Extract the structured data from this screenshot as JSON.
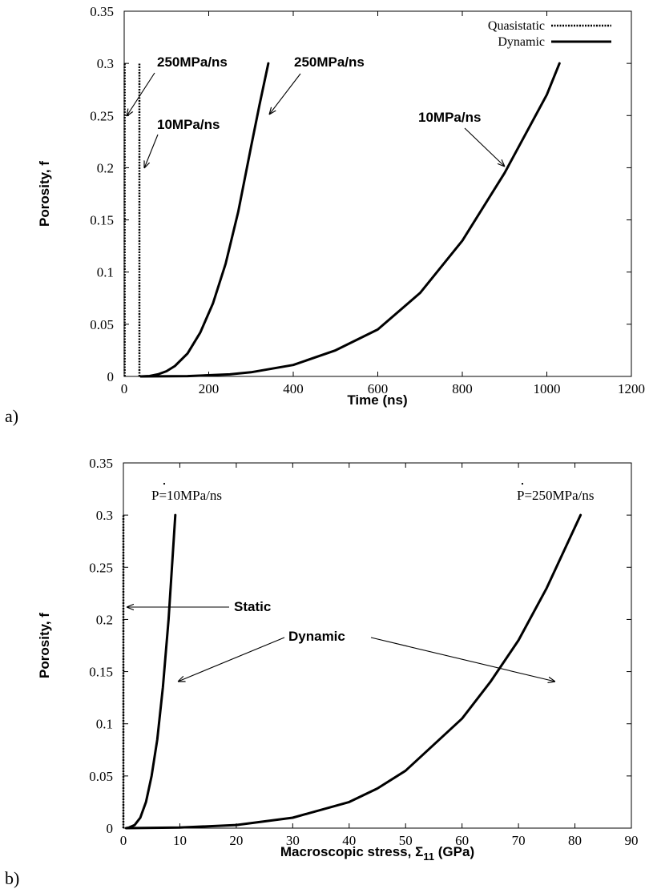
{
  "chart_data": [
    {
      "type": "line",
      "panel_label": "a)",
      "xlabel": "Time (ns)",
      "ylabel": "Porosity, f",
      "xlim": [
        0,
        1200
      ],
      "ylim": [
        0,
        0.35
      ],
      "xticks": [
        "0",
        "200",
        "400",
        "600",
        "800",
        "1000",
        "1200"
      ],
      "yticks": [
        "0",
        "0.05",
        "0.1",
        "0.15",
        "0.2",
        "0.25",
        "0.3",
        "0.35"
      ],
      "grid": false,
      "legend_position": "top-right",
      "legend": [
        {
          "label": "Quasistatic",
          "style": "dotted"
        },
        {
          "label": "Dynamic",
          "style": "solid"
        }
      ],
      "series": [
        {
          "style": "dotted",
          "x": [
            1.2,
            1.2
          ],
          "y": [
            0,
            0.3
          ]
        },
        {
          "style": "dotted",
          "x": [
            36,
            36
          ],
          "y": [
            0,
            0.3
          ]
        },
        {
          "style": "solid",
          "x": [
            40,
            60,
            80,
            100,
            120,
            150,
            180,
            210,
            240,
            270,
            300,
            320,
            341
          ],
          "y": [
            0,
            0.0004,
            0.002,
            0.005,
            0.01,
            0.022,
            0.042,
            0.07,
            0.108,
            0.158,
            0.22,
            0.26,
            0.3
          ]
        },
        {
          "style": "solid",
          "x": [
            40,
            150,
            250,
            300,
            400,
            500,
            600,
            700,
            800,
            900,
            1000,
            1030
          ],
          "y": [
            0,
            0.0003,
            0.002,
            0.004,
            0.011,
            0.025,
            0.045,
            0.08,
            0.13,
            0.195,
            0.27,
            0.3
          ]
        }
      ],
      "annotations": [
        {
          "text": "250MPa/ns",
          "x": 0,
          "y": 0.25
        },
        {
          "text": "10MPa/ns",
          "x": 40,
          "y": 0.2
        },
        {
          "text": "250MPa/ns",
          "x": 340,
          "y": 0.25
        },
        {
          "text": "10MPa/ns",
          "x": 900,
          "y": 0.2
        }
      ]
    },
    {
      "type": "line",
      "panel_label": "b)",
      "xlabel_main": "Macroscopic stress, Σ",
      "xlabel_sub": "11",
      "xlabel_unit": " (GPa)",
      "ylabel": "Porosity, f",
      "xlim": [
        0,
        90
      ],
      "ylim": [
        0,
        0.35
      ],
      "xticks": [
        "0",
        "10",
        "20",
        "30",
        "40",
        "50",
        "60",
        "70",
        "80",
        "90"
      ],
      "yticks": [
        "0",
        "0.05",
        "0.1",
        "0.15",
        "0.2",
        "0.25",
        "0.3",
        "0.35"
      ],
      "grid": false,
      "series": [
        {
          "style": "dotted",
          "x": [
            0,
            0
          ],
          "y": [
            0,
            0.3
          ]
        },
        {
          "style": "solid",
          "x": [
            0.5,
            1,
            2,
            3,
            4,
            5,
            6,
            7,
            8,
            8.6,
            9.2
          ],
          "y": [
            0,
            0.0005,
            0.003,
            0.01,
            0.025,
            0.05,
            0.085,
            0.135,
            0.2,
            0.25,
            0.3
          ]
        },
        {
          "style": "solid",
          "x": [
            0.5,
            10,
            20,
            30,
            40,
            45,
            50,
            55,
            60,
            65,
            70,
            75,
            81
          ],
          "y": [
            0,
            0.0005,
            0.003,
            0.01,
            0.025,
            0.038,
            0.055,
            0.08,
            0.105,
            0.14,
            0.18,
            0.23,
            0.3
          ]
        }
      ],
      "annotations": {
        "label_10": "P=10MPa/ns",
        "label_250": "P=250MPa/ns",
        "static": "Static",
        "dynamic": "Dynamic"
      }
    }
  ]
}
